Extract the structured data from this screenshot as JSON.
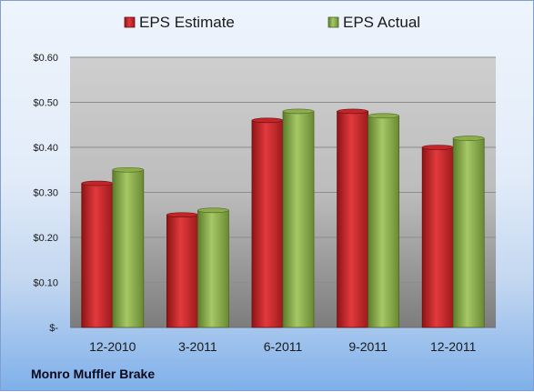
{
  "chart_data": {
    "type": "bar",
    "categories": [
      "12-2010",
      "3-2011",
      "6-2011",
      "9-2011",
      "12-2011"
    ],
    "series": [
      {
        "name": "EPS Estimate",
        "color": "#c0262a",
        "values": [
          0.32,
          0.25,
          0.46,
          0.48,
          0.4
        ]
      },
      {
        "name": "EPS Actual",
        "color": "#8cae4a",
        "values": [
          0.35,
          0.26,
          0.48,
          0.47,
          0.42
        ]
      }
    ],
    "y_ticks": [
      "$-",
      "$0.10",
      "$0.20",
      "$0.30",
      "$0.40",
      "$0.50",
      "$0.60"
    ],
    "ylim": [
      0,
      0.6
    ],
    "grid": true,
    "legend": "top"
  },
  "company": "Monro Muffler Brake"
}
